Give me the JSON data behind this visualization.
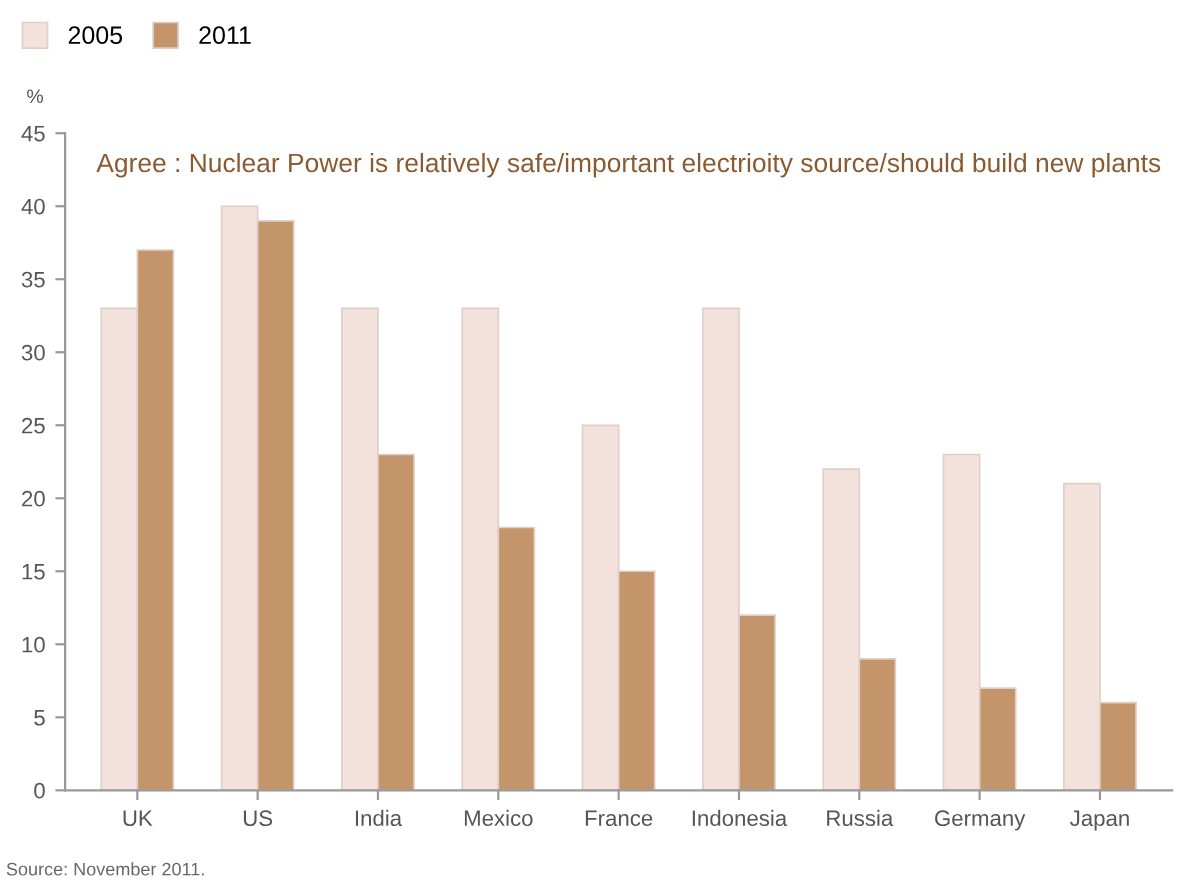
{
  "chart_data": {
    "type": "bar",
    "title": "Agree : Nuclear Power is relatively safe/important electrioity source/should build new plants",
    "ylabel": "%",
    "categories": [
      "UK",
      "US",
      "India",
      "Mexico",
      "France",
      "Indonesia",
      "Russia",
      "Germany",
      "Japan"
    ],
    "series": [
      {
        "name": "2005",
        "color": "#f3e2dc",
        "values": [
          33,
          40,
          33,
          33,
          25,
          33,
          22,
          23,
          21
        ]
      },
      {
        "name": "2011",
        "color": "#c4946a",
        "values": [
          37,
          39,
          23,
          18,
          15,
          12,
          9,
          7,
          6
        ]
      }
    ],
    "ylim": [
      0,
      45
    ],
    "yticks": [
      0,
      5,
      10,
      15,
      20,
      25,
      30,
      35,
      40,
      45
    ],
    "grid": false,
    "legend": "top left",
    "annotations": [
      "Source: November 2011."
    ]
  }
}
